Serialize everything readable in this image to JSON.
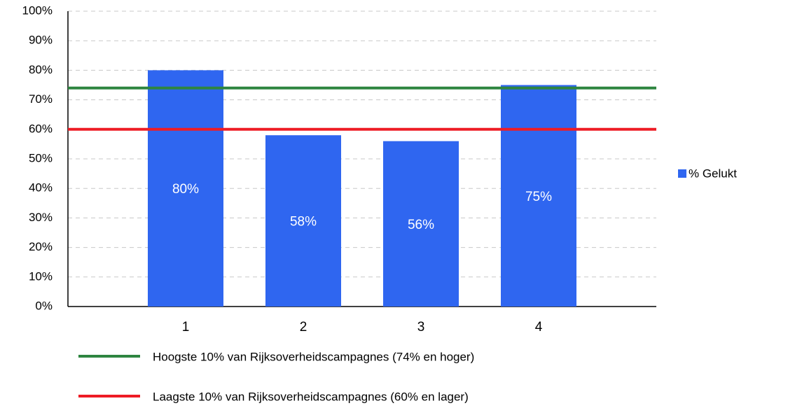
{
  "chart_data": {
    "type": "bar",
    "categories": [
      "1",
      "2",
      "3",
      "4"
    ],
    "series": [
      {
        "name": "% Gelukt",
        "color": "#2f66f0",
        "values": [
          80,
          58,
          56,
          75
        ],
        "value_labels": [
          "80%",
          "58%",
          "56%",
          "75%"
        ]
      }
    ],
    "reference_lines": [
      {
        "value": 74,
        "color": "#2e8540",
        "label": "Hoogste 10% van Rijksoverheidscampagnes (74% en hoger)"
      },
      {
        "value": 60,
        "color": "#ee1c25",
        "label": "Laagste 10% van Rijksoverheidscampagnes (60% en lager)"
      }
    ],
    "ylim": [
      0,
      100
    ],
    "yticks": [
      {
        "value": 0,
        "label": "0%"
      },
      {
        "value": 10,
        "label": "10%"
      },
      {
        "value": 20,
        "label": "20%"
      },
      {
        "value": 30,
        "label": "30%"
      },
      {
        "value": 40,
        "label": "40%"
      },
      {
        "value": 50,
        "label": "50%"
      },
      {
        "value": 60,
        "label": "60%"
      },
      {
        "value": 70,
        "label": "70%"
      },
      {
        "value": 80,
        "label": "80%"
      },
      {
        "value": 90,
        "label": "90%"
      },
      {
        "value": 100,
        "label": "100%"
      }
    ],
    "grid": true,
    "legend": "right"
  }
}
